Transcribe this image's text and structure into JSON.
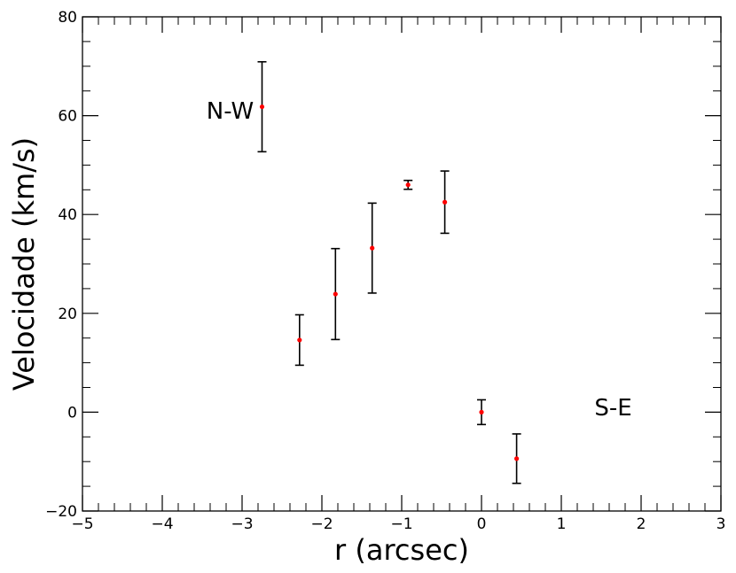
{
  "chart_data": {
    "type": "scatter",
    "xlabel": "r (arcsec)",
    "ylabel": "Velocidade (km/s)",
    "xlim": [
      -5,
      3
    ],
    "ylim": [
      -20,
      80
    ],
    "xticks": [
      "−5",
      "−4",
      "−3",
      "−2",
      "−1",
      "0",
      "1",
      "2",
      "3"
    ],
    "yticks": [
      "−20",
      "0",
      "20",
      "40",
      "60",
      "80"
    ],
    "grid": false,
    "marker_color": "#ff0000",
    "errorbar_color": "#000000",
    "points": [
      {
        "x": -2.75,
        "y": 61.8,
        "err": 9.1
      },
      {
        "x": -2.28,
        "y": 14.6,
        "err": 5.1
      },
      {
        "x": -1.83,
        "y": 23.9,
        "err": 9.2
      },
      {
        "x": -1.37,
        "y": 33.2,
        "err": 9.1
      },
      {
        "x": -0.92,
        "y": 46.0,
        "err": 0.9
      },
      {
        "x": -0.46,
        "y": 42.5,
        "err": 6.3
      },
      {
        "x": 0.0,
        "y": 0.0,
        "err": 2.5
      },
      {
        "x": 0.44,
        "y": -9.4,
        "err": 5.0
      }
    ],
    "annotations": [
      {
        "text": "N-W",
        "x": -3.15,
        "y": 61.0
      },
      {
        "text": "S-E",
        "x": 1.65,
        "y": 1.0
      }
    ]
  }
}
